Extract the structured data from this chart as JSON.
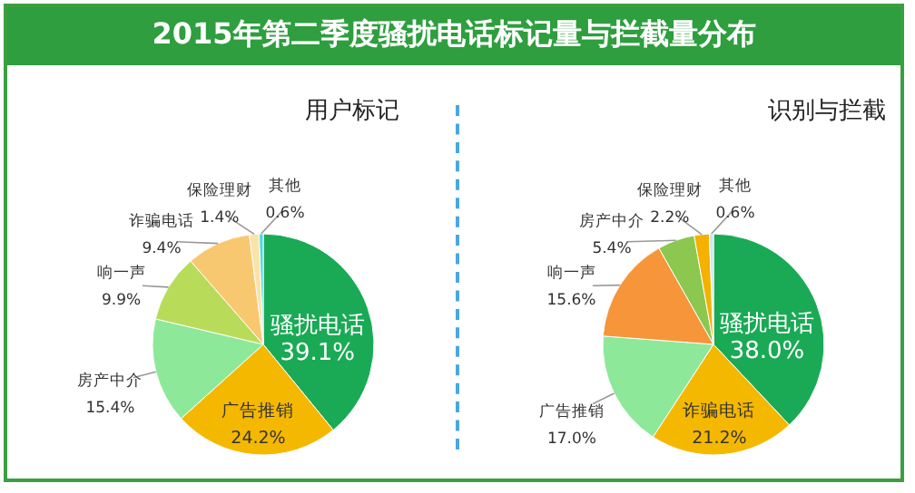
{
  "chart_data": [
    {
      "type": "pie",
      "title": "2015年第二季度骚扰电话标记量与拦截量分布",
      "subtitle": "用户标记",
      "categories": [
        "骚扰电话",
        "广告推销",
        "房产中介",
        "响一声",
        "诈骗电话",
        "保险理财",
        "其他"
      ],
      "values": [
        39.1,
        24.2,
        15.4,
        9.9,
        9.4,
        1.4,
        0.6
      ],
      "value_labels": [
        "39.1%",
        "24.2%",
        "15.4%",
        "9.9%",
        "9.4%",
        "1.4%",
        "0.6%"
      ],
      "colors": [
        "#1aaa55",
        "#f5b800",
        "#8ee89a",
        "#b8dc5a",
        "#f8c870",
        "#fbe3a8",
        "#4fd8e8"
      ]
    },
    {
      "type": "pie",
      "subtitle": "识别与拦截",
      "categories": [
        "骚扰电话",
        "诈骗电话",
        "广告推销",
        "响一声",
        "房产中介",
        "保险理财",
        "其他"
      ],
      "values": [
        38.0,
        21.2,
        17.0,
        15.6,
        5.4,
        2.2,
        0.6
      ],
      "value_labels": [
        "38.0%",
        "21.2%",
        "17.0%",
        "15.6%",
        "5.4%",
        "2.2%",
        "0.6%"
      ],
      "colors": [
        "#1aaa55",
        "#f5b800",
        "#8ee89a",
        "#f7953a",
        "#8cc850",
        "#f5b000",
        "#c8e8f0"
      ]
    }
  ]
}
